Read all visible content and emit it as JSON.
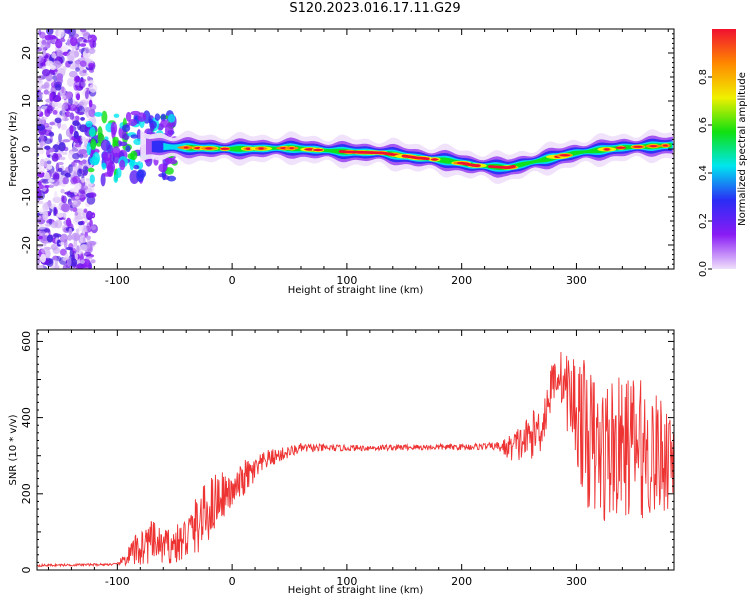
{
  "figure_title": "S120.2023.016.17.11.G29",
  "chart_data": [
    {
      "type": "heatmap",
      "title": "",
      "xlabel": "Height of straight line (km)",
      "ylabel": "Frequency (Hz)",
      "xlim": [
        -170,
        385
      ],
      "ylim": [
        -25,
        25
      ],
      "xticks": [
        -100,
        0,
        100,
        200,
        300
      ],
      "yticks": [
        -20,
        -10,
        0,
        10,
        20
      ],
      "colorbar": {
        "label": "Normalized spectral amplitude",
        "range": [
          0,
          1
        ],
        "ticks": [
          "0.0",
          "0.2",
          "0.4",
          "0.6",
          "0.8"
        ],
        "colors": [
          "#efe0fb",
          "#8a1cf5",
          "#2a2cf5",
          "#00e6f0",
          "#10e010",
          "#f0f000",
          "#ff8800",
          "#f01030"
        ]
      },
      "ridge": [
        {
          "x": -60,
          "freq": 0.5
        },
        {
          "x": -30,
          "freq": 0.2
        },
        {
          "x": 0,
          "freq": 0.0
        },
        {
          "x": 50,
          "freq": 0.2
        },
        {
          "x": 100,
          "freq": -0.6
        },
        {
          "x": 130,
          "freq": -0.8
        },
        {
          "x": 160,
          "freq": -1.8
        },
        {
          "x": 190,
          "freq": -2.5
        },
        {
          "x": 210,
          "freq": -3.4
        },
        {
          "x": 240,
          "freq": -3.9
        },
        {
          "x": 270,
          "freq": -2.3
        },
        {
          "x": 300,
          "freq": -0.8
        },
        {
          "x": 340,
          "freq": 0.3
        },
        {
          "x": 385,
          "freq": 0.8
        }
      ],
      "noise_region": {
        "x": [
          -170,
          -120
        ],
        "freq": [
          -25,
          25
        ]
      }
    },
    {
      "type": "line",
      "title": "",
      "xlabel": "Height of straight line (km)",
      "ylabel": "SNR (10 * v/v)",
      "xlim": [
        -170,
        385
      ],
      "ylim": [
        0,
        630
      ],
      "xticks": [
        -100,
        0,
        100,
        200,
        300
      ],
      "yticks": [
        0,
        200,
        400,
        600
      ],
      "series": [
        {
          "color": "#ee3333",
          "envelope_x": [
            -170,
            -100,
            -95,
            -80,
            -70,
            -60,
            -45,
            -30,
            -20,
            -10,
            0,
            10,
            20,
            30,
            40,
            60,
            100,
            150,
            200,
            230,
            240,
            250,
            260,
            270,
            280,
            285,
            290,
            300,
            310,
            320,
            330,
            340,
            350,
            360,
            370,
            385
          ],
          "envelope_y": [
            12,
            15,
            25,
            60,
            75,
            60,
            70,
            120,
            160,
            200,
            200,
            240,
            260,
            290,
            300,
            320,
            320,
            322,
            323,
            325,
            320,
            330,
            350,
            380,
            500,
            520,
            480,
            420,
            350,
            300,
            320,
            320,
            330,
            310,
            300,
            310
          ],
          "noise_amp": [
            3,
            3,
            15,
            55,
            55,
            45,
            55,
            80,
            85,
            70,
            35,
            50,
            35,
            25,
            20,
            12,
            8,
            8,
            8,
            10,
            30,
            50,
            60,
            70,
            60,
            60,
            90,
            160,
            190,
            190,
            200,
            180,
            190,
            180,
            160,
            150
          ]
        }
      ]
    }
  ]
}
